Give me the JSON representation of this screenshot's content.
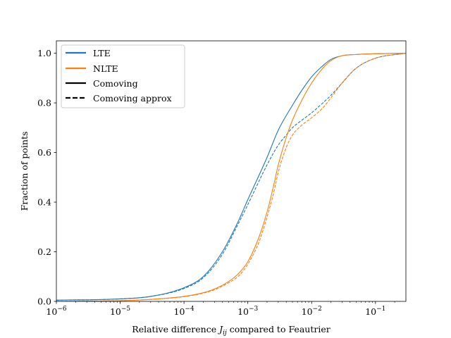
{
  "chart_data": {
    "type": "line",
    "title": "",
    "xlabel_prefix": "Relative difference ",
    "xlabel_var": "J",
    "xlabel_sub": "ij",
    "xlabel_suffix": " compared to Feautrier",
    "ylabel": "Fraction of points",
    "xscale": "log",
    "xlim": [
      1e-06,
      0.3
    ],
    "ylim": [
      0,
      1.05
    ],
    "x_ticks": [
      {
        "value": 1e-06,
        "base": "10",
        "exp": "−6"
      },
      {
        "value": 1e-05,
        "base": "10",
        "exp": "−5"
      },
      {
        "value": 0.0001,
        "base": "10",
        "exp": "−4"
      },
      {
        "value": 0.001,
        "base": "10",
        "exp": "−3"
      },
      {
        "value": 0.01,
        "base": "10",
        "exp": "−2"
      },
      {
        "value": 0.1,
        "base": "10",
        "exp": "−1"
      }
    ],
    "y_ticks": [
      {
        "value": 0.0,
        "label": "0.0"
      },
      {
        "value": 0.2,
        "label": "0.2"
      },
      {
        "value": 0.4,
        "label": "0.4"
      },
      {
        "value": 0.6,
        "label": "0.6"
      },
      {
        "value": 0.8,
        "label": "0.8"
      },
      {
        "value": 1.0,
        "label": "1.0"
      }
    ],
    "colors": {
      "LTE": "#1f77b4",
      "NLTE": "#ff7f0e",
      "legend_style": "#000000"
    },
    "legend": {
      "placement": "top-left",
      "entries": [
        {
          "label": "LTE",
          "color": "#1f77b4",
          "dash": "solid"
        },
        {
          "label": "NLTE",
          "color": "#ff7f0e",
          "dash": "solid"
        },
        {
          "label": "Comoving",
          "color": "#000000",
          "dash": "solid"
        },
        {
          "label": "Comoving approx",
          "color": "#000000",
          "dash": "dashed"
        }
      ]
    },
    "series": [
      {
        "name": "LTE Comoving",
        "color": "#1f77b4",
        "dash": "solid",
        "x": [
          1e-06,
          1e-05,
          3e-05,
          0.0001,
          0.0002,
          0.0004,
          0.0007,
          0.001,
          0.002,
          0.003,
          0.005,
          0.007,
          0.01,
          0.015,
          0.02,
          0.03,
          0.05,
          0.1,
          0.3
        ],
        "y": [
          0.005,
          0.01,
          0.02,
          0.055,
          0.1,
          0.2,
          0.32,
          0.41,
          0.58,
          0.69,
          0.79,
          0.85,
          0.905,
          0.95,
          0.975,
          0.99,
          0.995,
          0.998,
          1.0
        ]
      },
      {
        "name": "LTE Comoving approx",
        "color": "#1f77b4",
        "dash": "dashed",
        "x": [
          1e-06,
          1e-05,
          3e-05,
          0.0001,
          0.0002,
          0.0004,
          0.0007,
          0.001,
          0.002,
          0.003,
          0.004,
          0.005,
          0.007,
          0.01,
          0.015,
          0.02,
          0.03,
          0.05,
          0.1,
          0.3
        ],
        "y": [
          0.005,
          0.01,
          0.02,
          0.052,
          0.095,
          0.19,
          0.31,
          0.39,
          0.55,
          0.63,
          0.67,
          0.7,
          0.73,
          0.76,
          0.8,
          0.83,
          0.88,
          0.94,
          0.98,
          1.0
        ]
      },
      {
        "name": "NLTE Comoving",
        "color": "#ff7f0e",
        "dash": "solid",
        "x": [
          1e-06,
          1e-05,
          3e-05,
          0.0001,
          0.0002,
          0.0003,
          0.0005,
          0.0007,
          0.001,
          0.0015,
          0.002,
          0.0025,
          0.003,
          0.004,
          0.005,
          0.007,
          0.01,
          0.015,
          0.02,
          0.03,
          0.05,
          0.1,
          0.3
        ],
        "y": [
          0.0,
          0.003,
          0.008,
          0.02,
          0.035,
          0.05,
          0.08,
          0.11,
          0.16,
          0.26,
          0.36,
          0.46,
          0.55,
          0.66,
          0.73,
          0.81,
          0.88,
          0.94,
          0.97,
          0.99,
          0.995,
          0.998,
          1.0
        ]
      },
      {
        "name": "NLTE Comoving approx",
        "color": "#ff7f0e",
        "dash": "dashed",
        "x": [
          1e-06,
          1e-05,
          3e-05,
          0.0001,
          0.0002,
          0.0003,
          0.0005,
          0.0007,
          0.001,
          0.0015,
          0.002,
          0.0025,
          0.003,
          0.004,
          0.005,
          0.007,
          0.01,
          0.015,
          0.02,
          0.03,
          0.05,
          0.1,
          0.3
        ],
        "y": [
          0.0,
          0.003,
          0.008,
          0.019,
          0.033,
          0.047,
          0.075,
          0.1,
          0.15,
          0.24,
          0.34,
          0.43,
          0.52,
          0.62,
          0.67,
          0.71,
          0.74,
          0.78,
          0.82,
          0.88,
          0.94,
          0.98,
          1.0
        ]
      }
    ]
  }
}
